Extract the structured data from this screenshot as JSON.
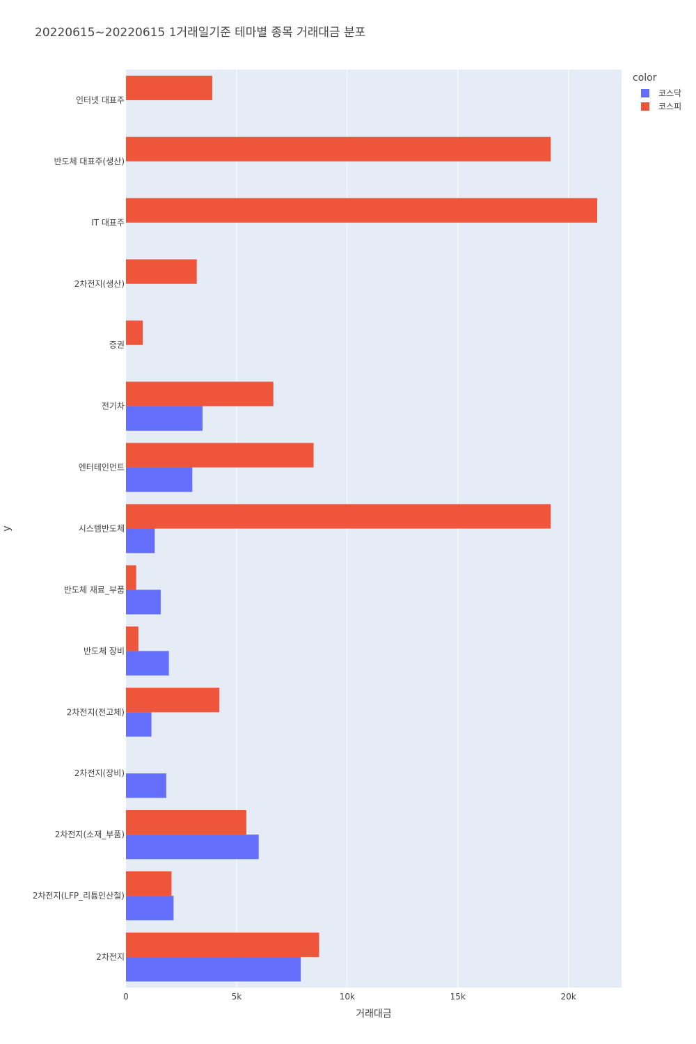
{
  "chart_data": {
    "type": "bar",
    "orientation": "horizontal",
    "barmode": "group",
    "title": "20220615~20220615 1거래일기준 테마별 종목 거래대금 분포",
    "xlabel": "거래대금",
    "ylabel": "y",
    "xlim": [
      0,
      22400
    ],
    "xticks": [
      0,
      5000,
      10000,
      15000,
      20000
    ],
    "xtick_labels": [
      "0",
      "5k",
      "10k",
      "15k",
      "20k"
    ],
    "categories": [
      "2차전지",
      "2차전지(LFP_리튬인산철)",
      "2차전지(소재_부품)",
      "2차전지(장비)",
      "2차전지(전고체)",
      "반도체 장비",
      "반도체 재료_부품",
      "시스템반도체",
      "엔터테인먼트",
      "전기차",
      "증권",
      "2차전지(생산)",
      "IT 대표주",
      "반도체 대표주(생산)",
      "인터넷 대표주"
    ],
    "series": [
      {
        "name": "코스닥",
        "color": "#636efa",
        "values": [
          7900,
          2150,
          6000,
          1820,
          1150,
          1940,
          1570,
          1300,
          3000,
          3460,
          0,
          0,
          0,
          0,
          0
        ]
      },
      {
        "name": "코스피",
        "color": "#ef553b",
        "values": [
          8730,
          2060,
          5440,
          0,
          4220,
          560,
          460,
          19200,
          8480,
          6660,
          760,
          3200,
          21300,
          19200,
          3900
        ]
      }
    ],
    "legend": {
      "title": "color",
      "position": "top-right"
    },
    "grid": true,
    "plot_bgcolor": "#e5ecf6"
  }
}
